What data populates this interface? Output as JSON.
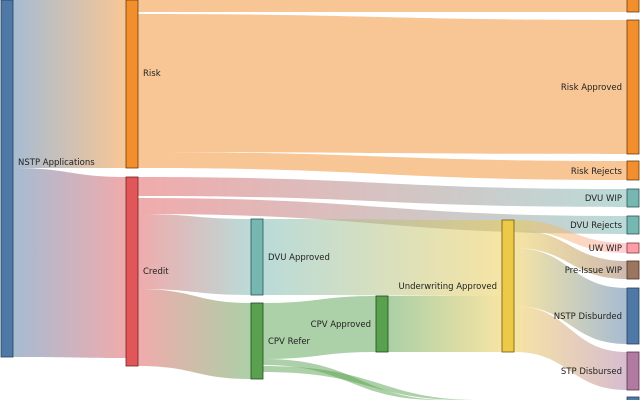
{
  "diagram": {
    "type": "sankey",
    "nodes": [
      {
        "id": "nstp_applications",
        "label": "NSTP Applications",
        "color": "#4e79a7"
      },
      {
        "id": "risk",
        "label": "Risk",
        "color": "#f28e2b"
      },
      {
        "id": "credit",
        "label": "Credit",
        "color": "#e15759"
      },
      {
        "id": "dvu_approved",
        "label": "DVU Approved",
        "color": "#76b7b2"
      },
      {
        "id": "cpv_refer",
        "label": "CPV Refer",
        "color": "#59a14f"
      },
      {
        "id": "cpv_approved",
        "label": "CPV Approved",
        "color": "#59a14f"
      },
      {
        "id": "underwriting_approved",
        "label": "Underwriting Approved",
        "color": "#edc948"
      },
      {
        "id": "risk_top",
        "label": "",
        "color": "#f28e2b"
      },
      {
        "id": "risk_approved",
        "label": "Risk Approved",
        "color": "#f28e2b"
      },
      {
        "id": "risk_rejects",
        "label": "Risk Rejects",
        "color": "#f28e2b"
      },
      {
        "id": "dvu_wip",
        "label": "DVU WIP",
        "color": "#76b7b2"
      },
      {
        "id": "dvu_rejects",
        "label": "DVU Rejects",
        "color": "#76b7b2"
      },
      {
        "id": "uw_wip",
        "label": "UW WIP",
        "color": "#ff9da7"
      },
      {
        "id": "pre_issue_wip",
        "label": "Pre-Issue WIP",
        "color": "#9c755f"
      },
      {
        "id": "nstp_disburded",
        "label": "NSTP Disburded",
        "color": "#4e79a7"
      },
      {
        "id": "stp_disbursed",
        "label": "STP Disbursed",
        "color": "#b07aa1"
      },
      {
        "id": "bottom_right",
        "label": "",
        "color": "#4e79a7"
      }
    ]
  }
}
